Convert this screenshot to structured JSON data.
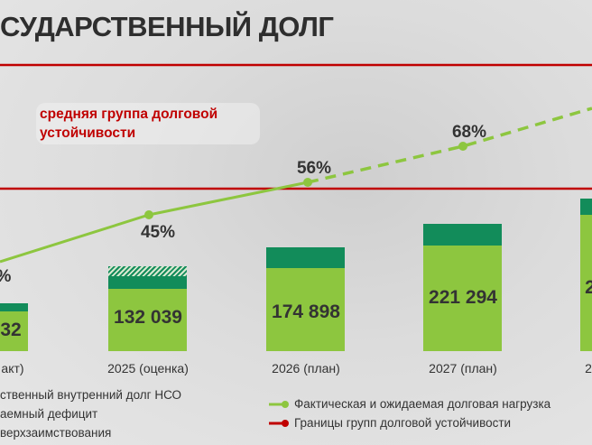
{
  "title": "СУДАРСТВЕННЫЙ ДОЛГ",
  "note": "средняя группа долговой устойчивости",
  "colors": {
    "debt": "#8dc63f",
    "deficit": "#128c5a",
    "boundary": "#c00000",
    "load_line": "#8dc63f"
  },
  "chart_data": {
    "type": "bar",
    "categories": [
      "акт)",
      "2025 (оценка)",
      "2026 (план)",
      "2027 (план)",
      "2"
    ],
    "bar_labels": [
      "32",
      "132 039",
      "174 898",
      "221 294",
      "2"
    ],
    "series": [
      {
        "name": "ственный внутренний долг НСО",
        "values": [
          null,
          132039,
          174898,
          221294,
          null
        ]
      },
      {
        "name": "аемный дефицит",
        "values": [
          null,
          null,
          null,
          null,
          null
        ]
      },
      {
        "name": "верхзаимствования",
        "values": [
          null,
          null,
          null,
          null,
          null
        ]
      }
    ],
    "line": {
      "name": "Фактическая и ожидаемая долговая нагрузка",
      "labels": [
        "%",
        "45%",
        "56%",
        "68%",
        ""
      ],
      "values": [
        null,
        45,
        56,
        68,
        null
      ],
      "style_after": "dashed from 2026"
    },
    "boundary": {
      "name": "Границы групп долговой устойчивости"
    }
  },
  "legend_left": [
    "ственный внутренний долг НСО",
    "аемный дефицит",
    "верхзаимствования"
  ],
  "legend_right": [
    "Фактическая и ожидаемая долговая нагрузка",
    "Границы групп долговой устойчивости"
  ]
}
